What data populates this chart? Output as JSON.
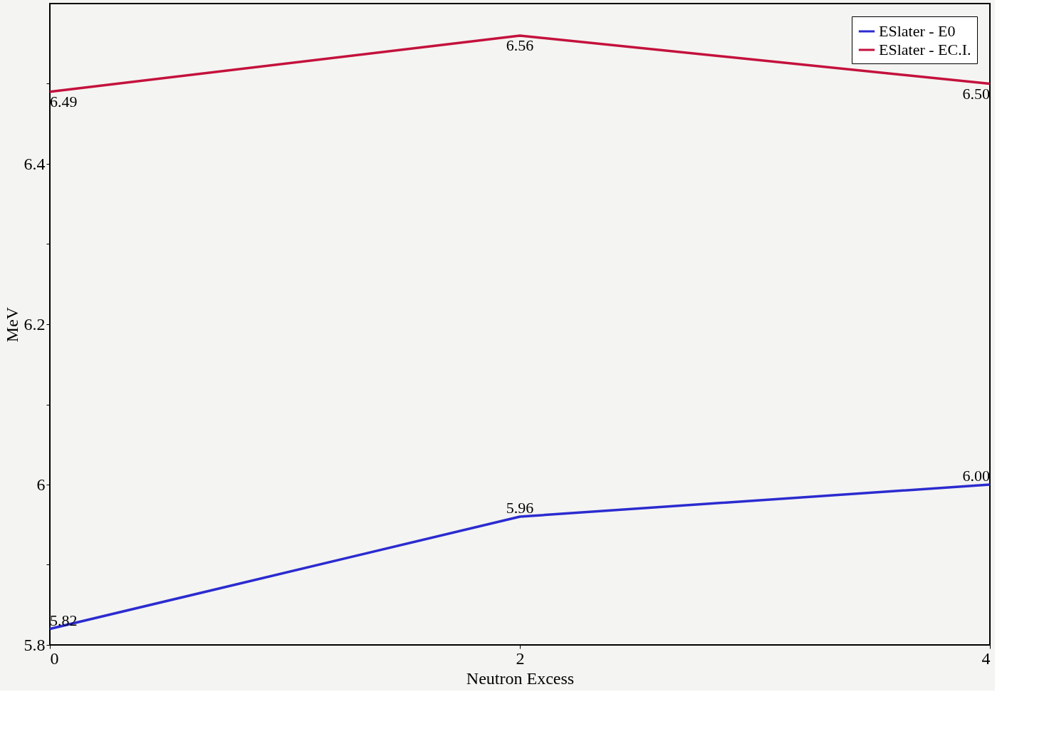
{
  "chart_data": {
    "type": "line",
    "xlabel": "Neutron Excess",
    "ylabel": "MeV",
    "x": [
      0,
      2,
      4
    ],
    "series": [
      {
        "name": "ESlater - E0",
        "color": "#2b2bd0",
        "values": [
          5.82,
          5.96,
          6.0
        ],
        "value_labels": [
          "5.82",
          "5.96",
          "6.00"
        ]
      },
      {
        "name": "ESlater - EC.I.",
        "color": "#c4113c",
        "values": [
          6.49,
          6.56,
          6.5
        ],
        "value_labels": [
          "6.49",
          "6.56",
          "6.50"
        ]
      }
    ],
    "xlim": [
      0,
      4
    ],
    "xticks": [
      0,
      2,
      4
    ],
    "ylim": [
      5.8,
      6.6
    ],
    "yticks": [
      5.8,
      {
        "value": 5.9,
        "label": null
      },
      6,
      {
        "value": 6.1,
        "label": null
      },
      6.2,
      {
        "value": 6.3,
        "label": null
      },
      6.4,
      {
        "value": 6.5,
        "label": null
      }
    ],
    "grid": false,
    "legend": "top right",
    "marker": "none",
    "line_style": "solid"
  }
}
